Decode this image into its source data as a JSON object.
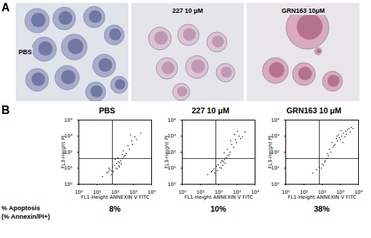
{
  "panel_a": {
    "letter": "A",
    "images": [
      {
        "label": "PBS"
      },
      {
        "label": "227 10 μM"
      },
      {
        "label": "GRN163 10μM"
      }
    ]
  },
  "panel_b": {
    "letter": "B"
  },
  "chart_data": [
    {
      "type": "scatter",
      "title": "PBS",
      "x_label": "FL1-Height ANNEXIN V FITC",
      "y_label": "FL3-Height PI",
      "log": true,
      "color": "#000000",
      "xlim": [
        1,
        10000
      ],
      "ylim": [
        1,
        10000
      ],
      "xticks": [
        {
          "value": 1,
          "label": "10⁰"
        },
        {
          "value": 10,
          "label": "10¹"
        },
        {
          "value": 100,
          "label": "10²"
        },
        {
          "value": 1000,
          "label": "10³"
        },
        {
          "value": 10000,
          "label": "10⁴"
        }
      ],
      "yticks": [
        {
          "value": 1,
          "label": "10⁰"
        },
        {
          "value": 10,
          "label": "10¹"
        },
        {
          "value": 100,
          "label": "10²"
        },
        {
          "value": 1000,
          "label": "10³"
        },
        {
          "value": 10000,
          "label": "10⁴"
        }
      ],
      "gates": {
        "x": 70,
        "y": 40
      },
      "x": [
        20,
        35,
        50,
        70,
        90,
        120,
        150,
        200,
        250,
        300,
        80,
        110,
        160,
        220,
        400,
        600,
        900,
        1500,
        2500,
        60,
        130,
        180,
        350,
        500,
        800,
        1200,
        40,
        100,
        280,
        700,
        45,
        65,
        140,
        240,
        170
      ],
      "y": [
        3,
        5,
        8,
        12,
        15,
        20,
        25,
        30,
        40,
        50,
        6,
        10,
        14,
        18,
        80,
        150,
        300,
        600,
        1500,
        4,
        9,
        22,
        60,
        250,
        500,
        900,
        6,
        35,
        120,
        1200,
        10,
        7,
        45,
        70,
        12
      ]
    },
    {
      "type": "scatter",
      "title": "227 10 μM",
      "x_label": "FL1-Height ANNEXIN V FITC",
      "y_label": "FL3-Height PI",
      "log": true,
      "color": "#000000",
      "xlim": [
        1,
        10000
      ],
      "ylim": [
        1,
        10000
      ],
      "xticks": [
        {
          "value": 1,
          "label": "10⁰"
        },
        {
          "value": 10,
          "label": "10¹"
        },
        {
          "value": 100,
          "label": "10²"
        },
        {
          "value": 1000,
          "label": "10³"
        },
        {
          "value": 10000,
          "label": "10⁴"
        }
      ],
      "yticks": [
        {
          "value": 1,
          "label": "10⁰"
        },
        {
          "value": 10,
          "label": "10¹"
        },
        {
          "value": 100,
          "label": "10²"
        },
        {
          "value": 1000,
          "label": "10³"
        },
        {
          "value": 10000,
          "label": "10⁴"
        }
      ],
      "gates": {
        "x": 70,
        "y": 40
      },
      "x": [
        25,
        40,
        55,
        75,
        95,
        130,
        160,
        210,
        260,
        320,
        85,
        115,
        170,
        230,
        420,
        650,
        950,
        1600,
        2800,
        60,
        140,
        190,
        380,
        520,
        850,
        1300,
        45,
        105,
        300,
        750,
        200,
        450,
        1100,
        2000,
        150
      ],
      "y": [
        4,
        6,
        9,
        13,
        16,
        22,
        28,
        35,
        45,
        60,
        7,
        11,
        15,
        20,
        100,
        200,
        400,
        700,
        1800,
        5,
        10,
        25,
        70,
        300,
        600,
        1000,
        7,
        40,
        150,
        1300,
        90,
        500,
        2000,
        900,
        30
      ]
    },
    {
      "type": "scatter",
      "title": "GRN163 10 μM",
      "x_label": "FL1-Height ANNEXIN V FITC",
      "y_label": "FL3-Height PI",
      "log": true,
      "color": "#000000",
      "xlim": [
        1,
        10000
      ],
      "ylim": [
        1,
        10000
      ],
      "xticks": [
        {
          "value": 1,
          "label": "10⁰"
        },
        {
          "value": 10,
          "label": "10¹"
        },
        {
          "value": 100,
          "label": "10²"
        },
        {
          "value": 1000,
          "label": "10³"
        },
        {
          "value": 10000,
          "label": "10⁴"
        }
      ],
      "yticks": [
        {
          "value": 1,
          "label": "10⁰"
        },
        {
          "value": 10,
          "label": "10¹"
        },
        {
          "value": 100,
          "label": "10²"
        },
        {
          "value": 1000,
          "label": "10³"
        },
        {
          "value": 10000,
          "label": "10⁴"
        }
      ],
      "gates": {
        "x": 70,
        "y": 40
      },
      "x": [
        30,
        50,
        70,
        100,
        140,
        180,
        220,
        300,
        400,
        500,
        700,
        900,
        1200,
        1500,
        2000,
        2500,
        3000,
        4000,
        250,
        350,
        600,
        800,
        1000,
        1800,
        3500,
        150,
        450,
        650,
        1100,
        2200,
        90,
        120,
        200,
        5000,
        1400
      ],
      "y": [
        5,
        8,
        12,
        18,
        25,
        40,
        60,
        100,
        200,
        300,
        500,
        800,
        1000,
        1500,
        2000,
        2500,
        3000,
        3500,
        150,
        400,
        700,
        1200,
        600,
        900,
        1800,
        30,
        250,
        1000,
        2200,
        1300,
        10,
        15,
        80,
        3000,
        400
      ]
    }
  ],
  "apoptosis": {
    "label": [
      "% Apoptosis",
      "(% Annexin/PI+)"
    ],
    "values": [
      8,
      10,
      38
    ],
    "value_labels": [
      "8%",
      "10%",
      "38%"
    ]
  }
}
